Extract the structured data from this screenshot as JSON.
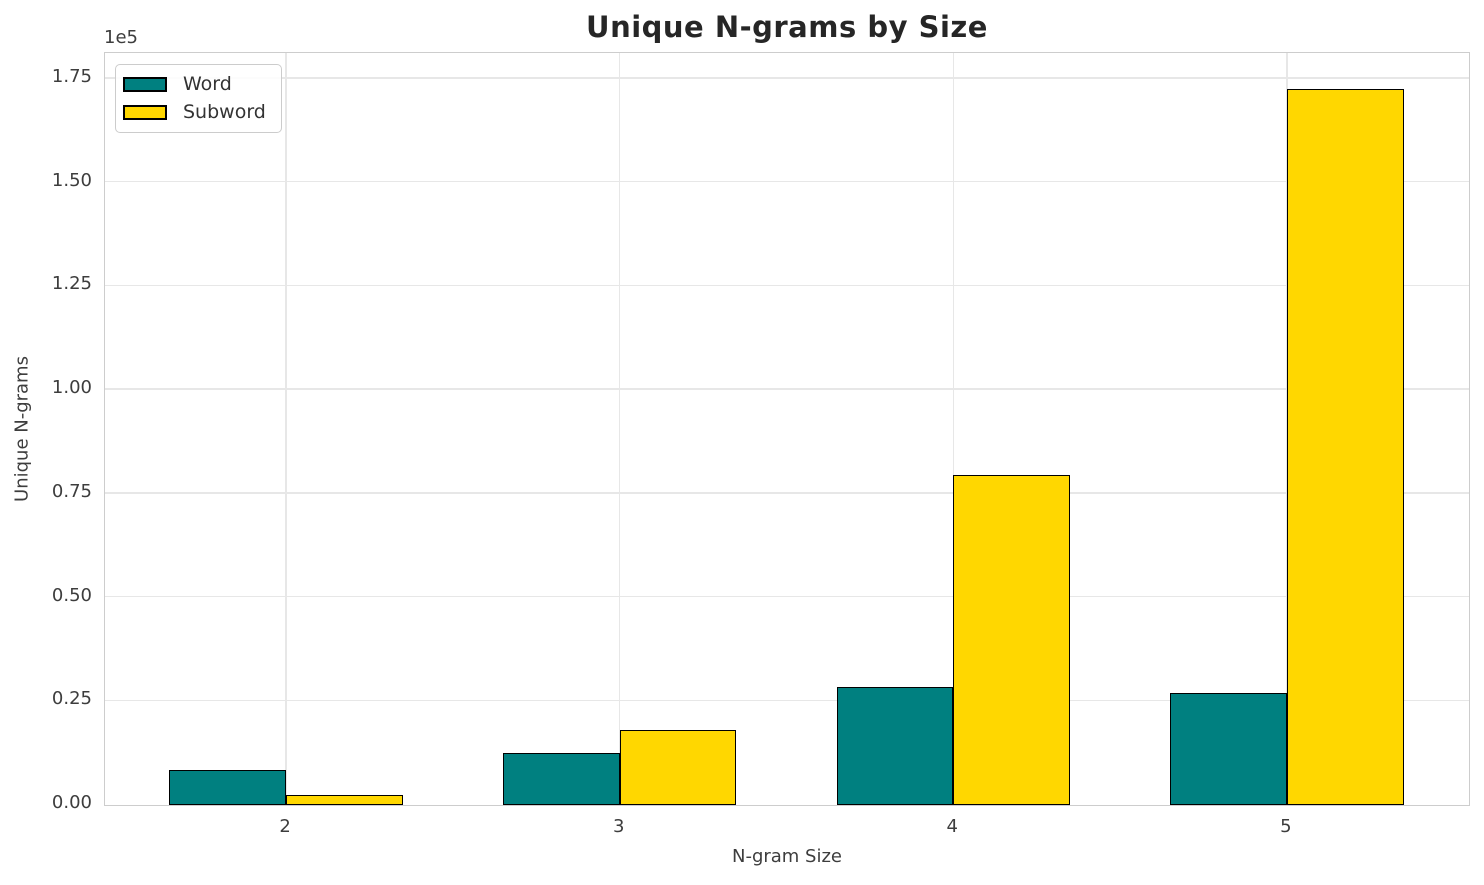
{
  "chart_data": {
    "type": "bar",
    "title": "Unique N-grams by Size",
    "xlabel": "N-gram Size",
    "ylabel": "Unique N-grams",
    "y_offset_label": "1e5",
    "categories": [
      "2",
      "3",
      "4",
      "5"
    ],
    "x_positions": [
      2,
      3,
      4,
      5
    ],
    "series": [
      {
        "name": "Word",
        "color": "#008080",
        "values": [
          8500,
          12500,
          28500,
          27000
        ]
      },
      {
        "name": "Subword",
        "color": "#FFD700",
        "values": [
          2500,
          18000,
          79500,
          172500
        ]
      }
    ],
    "bar_edge_color": "#000000",
    "bar_width": 0.35,
    "y_ticks": [
      0,
      25000,
      50000,
      75000,
      100000,
      125000,
      150000,
      175000
    ],
    "y_tick_labels": [
      "0.00",
      "0.25",
      "0.50",
      "0.75",
      "1.00",
      "1.25",
      "1.50",
      "1.75"
    ],
    "ylim": [
      0,
      181000
    ],
    "xlim": [
      1.457,
      5.543
    ],
    "grid": true,
    "legend_position": "upper-left"
  }
}
